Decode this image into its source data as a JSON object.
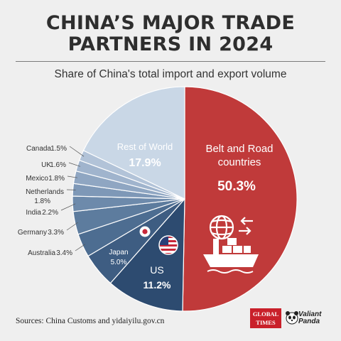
{
  "header": {
    "title_line1": "CHINA’S MAJOR TRADE",
    "title_line2": "PARTNERS IN 2024",
    "subtitle": "Share of China's total import and export volume"
  },
  "footer": {
    "sources": "Sources: China Customs and yidaiyilu.gov.cn",
    "logo_global_times_1": "GLOBAL",
    "logo_global_times_2": "TIMES",
    "logo_valiant_1": "Valiant",
    "logo_valiant_2": "Panda"
  },
  "colors": {
    "belt_road": "#c03a3a",
    "us": "#2d4b70",
    "japan": "#3e5d82",
    "australia": "#4d6d91",
    "germany": "#5d7c9e",
    "india": "#6d8aab",
    "netherlands": "#7e98b7",
    "mexico": "#8fa6c2",
    "uk": "#a0b4cd",
    "canada": "#b2c3d8",
    "rest_of_world": "#c9d7e6",
    "background": "#efefef"
  },
  "icons": [
    "globe-trade-icon",
    "cargo-ship-icon",
    "us-flag-icon",
    "japan-flag-icon"
  ],
  "chart_data": {
    "type": "pie",
    "start": "12 o'clock, clockwise",
    "slices": [
      {
        "key": "belt_road",
        "label": "Belt and Road countries",
        "label_line1": "Belt and Road",
        "label_line2": "countries",
        "value": 50.3,
        "text": "50.3%"
      },
      {
        "key": "us",
        "label": "US",
        "value": 11.2,
        "text": "11.2%"
      },
      {
        "key": "japan",
        "label": "Japan",
        "value": 5.0,
        "text": "5.0%"
      },
      {
        "key": "australia",
        "label": "Australia",
        "value": 3.4,
        "text": "3.4%"
      },
      {
        "key": "germany",
        "label": "Germany",
        "value": 3.3,
        "text": "3.3%"
      },
      {
        "key": "india",
        "label": "India",
        "value": 2.2,
        "text": "2.2%"
      },
      {
        "key": "netherlands",
        "label": "Netherlands",
        "value": 1.8,
        "text": "1.8%"
      },
      {
        "key": "mexico",
        "label": "Mexico",
        "value": 1.8,
        "text": "1.8%"
      },
      {
        "key": "uk",
        "label": "UK",
        "value": 1.6,
        "text": "1.6%"
      },
      {
        "key": "canada",
        "label": "Canada",
        "value": 1.5,
        "text": "1.5%"
      },
      {
        "key": "rest_of_world",
        "label": "Rest of World",
        "value": 17.9,
        "text": "17.9%"
      }
    ]
  }
}
